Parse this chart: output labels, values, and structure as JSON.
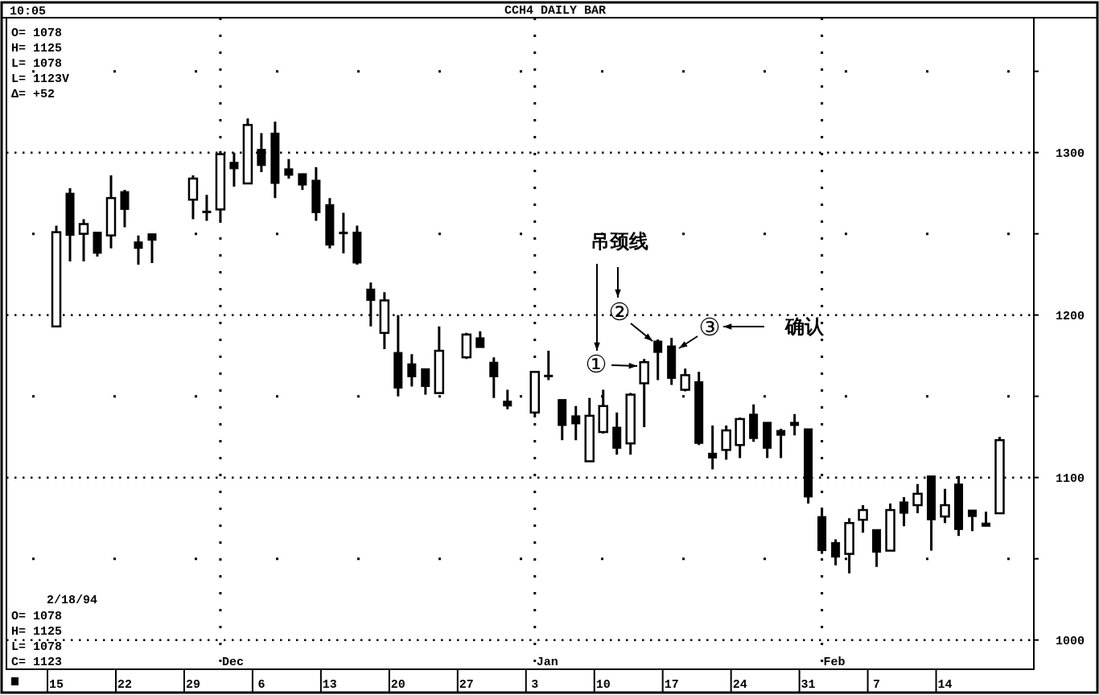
{
  "chart_data": {
    "type": "candlestick",
    "title": "CCH4 DAILY BAR",
    "categories": [
      "15",
      null,
      null,
      null,
      null,
      "22",
      null,
      null,
      null,
      null,
      "29",
      null,
      null,
      null,
      null,
      "6",
      null,
      null,
      null,
      null,
      "13",
      null,
      null,
      null,
      null,
      "20",
      null,
      null,
      null,
      null,
      "27",
      null,
      null,
      null,
      null,
      "3",
      null,
      null,
      null,
      null,
      "10",
      null,
      null,
      null,
      null,
      "17",
      null,
      null,
      null,
      null,
      "24",
      null,
      null,
      null,
      null,
      "31",
      null,
      null,
      null,
      null,
      "7",
      null,
      null,
      null,
      null,
      "14",
      null,
      null,
      null,
      null
    ],
    "ohlc": [
      [
        1193,
        1255,
        1193,
        1251
      ],
      [
        1275,
        1278,
        1233,
        1249
      ],
      [
        1250,
        1259,
        1233,
        1256
      ],
      [
        1251,
        1251,
        1236,
        1238
      ],
      [
        1249,
        1286,
        1241,
        1272
      ],
      [
        1276,
        1277,
        1254,
        1265
      ],
      [
        1245,
        1249,
        1231,
        1241
      ],
      [
        1250,
        1250,
        1232,
        1246
      ],
      null,
      null,
      [
        1271,
        1286,
        1259,
        1284
      ],
      [
        1264,
        1274,
        1258,
        1263
      ],
      [
        1265,
        1301,
        1258,
        1299
      ],
      [
        1294,
        1300,
        1279,
        1290
      ],
      [
        1281,
        1321,
        1281,
        1317
      ],
      [
        1302,
        1312,
        1288,
        1292
      ],
      [
        1312,
        1319,
        1272,
        1281
      ],
      [
        1290,
        1296,
        1284,
        1286
      ],
      [
        1287,
        1287,
        1277,
        1280
      ],
      [
        1283,
        1291,
        1258,
        1263
      ],
      [
        1268,
        1272,
        1241,
        1243
      ],
      [
        1251,
        1263,
        1238,
        1250
      ],
      [
        1251,
        1255,
        1231,
        1232
      ],
      [
        1216,
        1220,
        1193,
        1209
      ],
      [
        1189,
        1214,
        1179,
        1209
      ],
      [
        1177,
        1200,
        1150,
        1155
      ],
      [
        1170,
        1176,
        1156,
        1162
      ],
      [
        1167,
        1167,
        1151,
        1156
      ],
      [
        1152,
        1193,
        1152,
        1178
      ],
      null,
      [
        1174,
        1189,
        1173,
        1188
      ],
      [
        1186,
        1190,
        1180,
        1180
      ],
      [
        1171,
        1174,
        1149,
        1162
      ],
      [
        1147,
        1154,
        1142,
        1144
      ],
      null,
      [
        1140,
        1165,
        1137,
        1165
      ],
      [
        1163,
        1178,
        1160,
        1162
      ],
      [
        1148,
        1148,
        1123,
        1132
      ],
      [
        1138,
        1144,
        1123,
        1133
      ],
      [
        1110,
        1149,
        1110,
        1138
      ],
      [
        1128,
        1154,
        1127,
        1144
      ],
      [
        1131,
        1140,
        1114,
        1118
      ],
      [
        1121,
        1152,
        1114,
        1151
      ],
      [
        1158,
        1173,
        1131,
        1171
      ],
      [
        1184,
        1185,
        1160,
        1177
      ],
      [
        1181,
        1186,
        1157,
        1161
      ],
      [
        1154,
        1167,
        1153,
        1163
      ],
      [
        1159,
        1165,
        1120,
        1121
      ],
      [
        1115,
        1132,
        1105,
        1112
      ],
      [
        1117,
        1132,
        1111,
        1129
      ],
      [
        1120,
        1137,
        1112,
        1136
      ],
      [
        1139,
        1145,
        1122,
        1124
      ],
      [
        1134,
        1134,
        1112,
        1118
      ],
      [
        1129,
        1130,
        1112,
        1126
      ],
      [
        1134,
        1139,
        1126,
        1132
      ],
      [
        1130,
        1130,
        1084,
        1088
      ],
      [
        1076,
        1080,
        1053,
        1055
      ],
      [
        1060,
        1062,
        1046,
        1051
      ],
      [
        1053,
        1075,
        1041,
        1072
      ],
      [
        1074,
        1083,
        1066,
        1080
      ],
      [
        1068,
        1068,
        1045,
        1054
      ],
      [
        1055,
        1084,
        1055,
        1080
      ],
      [
        1085,
        1088,
        1070,
        1078
      ],
      [
        1083,
        1096,
        1078,
        1090
      ],
      [
        1101,
        1101,
        1055,
        1074
      ],
      [
        1076,
        1093,
        1072,
        1083
      ],
      [
        1096,
        1101,
        1064,
        1068
      ],
      [
        1080,
        1080,
        1067,
        1076
      ],
      [
        1072,
        1079,
        1070,
        1070
      ],
      [
        1078,
        1125,
        1078,
        1123
      ]
    ],
    "ylim": [
      982,
      1383
    ],
    "yticks": [
      1000,
      {
        "value": 1050,
        "label": null
      },
      1100,
      {
        "value": 1150,
        "label": null
      },
      1200,
      {
        "value": 1250,
        "label": null
      },
      1300,
      {
        "value": 1350,
        "label": null
      }
    ],
    "grid": true,
    "annotations": [
      "Dec",
      "Jan",
      "Feb",
      "10:05",
      "O= 1078",
      "H= 1125",
      "L= 1078",
      "L= 1123V",
      "Δ=  +52",
      "2/18/94",
      "O= 1078",
      "H= 1125",
      "L= 1078",
      "C= 1123",
      "吊颈线",
      "确认",
      "①",
      "②",
      "③"
    ]
  }
}
